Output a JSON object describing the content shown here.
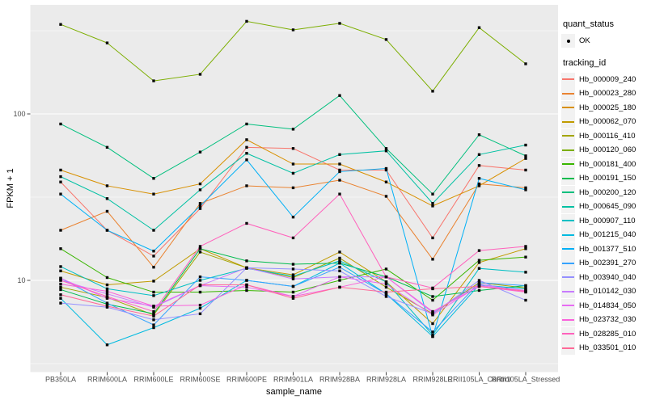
{
  "legend": {
    "quant_title": "quant_status",
    "ok_label": "OK",
    "tracking_title": "tracking_id",
    "key_bg": "#F2F2F2",
    "point_color": "#000000"
  },
  "panel": {
    "bg": "#EBEBEB",
    "grid_color": "#FFFFFF",
    "tick_color": "#333333",
    "tick_label_color": "#4D4D4D"
  },
  "chart_data": {
    "type": "line",
    "title": "",
    "xlabel": "sample_name",
    "ylabel": "FPKM + 1",
    "y_scale": "log10",
    "ylim": [
      2.8,
      440
    ],
    "yticks": [
      {
        "label": "10",
        "value": 10
      },
      {
        "label": "100",
        "value": 100
      }
    ],
    "yminor": [
      3.162,
      31.62,
      316.2
    ],
    "grid": true,
    "legend_position": "right",
    "categories": [
      "PB350LA",
      "RRIM600LA",
      "RRIM600LE",
      "RRIM600SE",
      "RRIM600PE",
      "RRIM901LA",
      "RRIM928BA",
      "RRIM928LA",
      "RRIM928LE",
      "RRII105LA_Control",
      "RRII105LA_Stressed"
    ],
    "quant_status": "OK",
    "series": [
      {
        "name": "Hb_000009_240",
        "color": "#F8766D",
        "values": [
          39,
          20,
          14,
          27,
          63,
          62,
          46,
          46,
          18,
          49,
          46
        ]
      },
      {
        "name": "Hb_000023_280",
        "color": "#EA8331",
        "values": [
          20,
          26,
          12,
          29,
          37,
          36,
          40,
          32,
          13.4,
          38,
          36
        ]
      },
      {
        "name": "Hb_000025_180",
        "color": "#D89000",
        "values": [
          46,
          37,
          33,
          38,
          70,
          50,
          50,
          39,
          28,
          37,
          54
        ]
      },
      {
        "name": "Hb_000062_070",
        "color": "#C09B00",
        "values": [
          11.4,
          9.4,
          9.9,
          15.5,
          11.9,
          10.8,
          14.8,
          9.8,
          5.5,
          12.8,
          15.5
        ]
      },
      {
        "name": "Hb_000116_410",
        "color": "#A3A500",
        "values": [
          9.1,
          7.9,
          6.2,
          14.8,
          11.9,
          10.4,
          13.6,
          9.1,
          6.3,
          9.7,
          9.0
        ]
      },
      {
        "name": "Hb_000120_060",
        "color": "#7CAE00",
        "values": [
          345,
          267,
          158,
          173,
          360,
          320,
          350,
          280,
          137,
          330,
          200
        ]
      },
      {
        "name": "Hb_000181_400",
        "color": "#39B600",
        "values": [
          15.5,
          10.4,
          8.5,
          8.5,
          8.7,
          8.5,
          10.0,
          11.7,
          7.6,
          13.2,
          13.8
        ]
      },
      {
        "name": "Hb_000191_150",
        "color": "#00BB4E",
        "values": [
          8.8,
          7.2,
          6.3,
          15.5,
          13.1,
          12.5,
          12.7,
          10.5,
          8.0,
          8.7,
          9.3
        ]
      },
      {
        "name": "Hb_000200_120",
        "color": "#00BF7D",
        "values": [
          87,
          63,
          41,
          59,
          87,
          81,
          129,
          62,
          33,
          75,
          56
        ]
      },
      {
        "name": "Hb_000645_090",
        "color": "#00C1A3",
        "values": [
          42,
          31,
          20,
          35,
          58,
          44,
          57,
          60,
          29,
          57,
          65
        ]
      },
      {
        "name": "Hb_000907_110",
        "color": "#00BFC4",
        "values": [
          12.1,
          8.9,
          8.1,
          10.0,
          11.8,
          10.6,
          13.1,
          9.8,
          4.7,
          11.8,
          11.2
        ]
      },
      {
        "name": "Hb_001215_040",
        "color": "#00BAE0",
        "values": [
          7.8,
          4.1,
          5.2,
          6.8,
          10.0,
          9.2,
          12.7,
          8.3,
          4.6,
          9.4,
          8.9
        ]
      },
      {
        "name": "Hb_001377_510",
        "color": "#00B0F6",
        "values": [
          33,
          20,
          15,
          28,
          53,
          24,
          45,
          47,
          4.6,
          41,
          35
        ]
      },
      {
        "name": "Hb_002391_270",
        "color": "#35A2FF",
        "values": [
          10.3,
          7.3,
          5.4,
          10.5,
          10.0,
          9.2,
          12.0,
          8.3,
          4.9,
          9.7,
          9.3
        ]
      },
      {
        "name": "Hb_003940_040",
        "color": "#9590FF",
        "values": [
          7.3,
          6.9,
          5.8,
          6.3,
          11.9,
          11.7,
          11.4,
          8.0,
          6.3,
          10.0,
          7.6
        ]
      },
      {
        "name": "Hb_010142_030",
        "color": "#C77CFF",
        "values": [
          10.0,
          8.3,
          6.9,
          9.3,
          11.9,
          10.2,
          10.5,
          10.5,
          6.4,
          9.5,
          8.6
        ]
      },
      {
        "name": "Hb_014834_050",
        "color": "#E76BF3",
        "values": [
          10.3,
          7.8,
          7.0,
          9.3,
          9.1,
          8.0,
          10.5,
          9.5,
          6.2,
          9.3,
          8.7
        ]
      },
      {
        "name": "Hb_023732_030",
        "color": "#FA62DB",
        "values": [
          9.5,
          8.6,
          7.0,
          7.1,
          9.4,
          8.0,
          9.1,
          10.5,
          6.5,
          9.2,
          8.5
        ]
      },
      {
        "name": "Hb_028285_010",
        "color": "#FF62BC",
        "values": [
          10.0,
          8.0,
          6.5,
          16.0,
          22,
          18,
          33,
          10.5,
          9.0,
          15.1,
          16.0
        ]
      },
      {
        "name": "Hb_033501_010",
        "color": "#FF6A98",
        "values": [
          8.2,
          7.0,
          6.1,
          9.4,
          9.4,
          7.8,
          9.1,
          8.5,
          8.9,
          9.2,
          8.6
        ]
      }
    ]
  }
}
